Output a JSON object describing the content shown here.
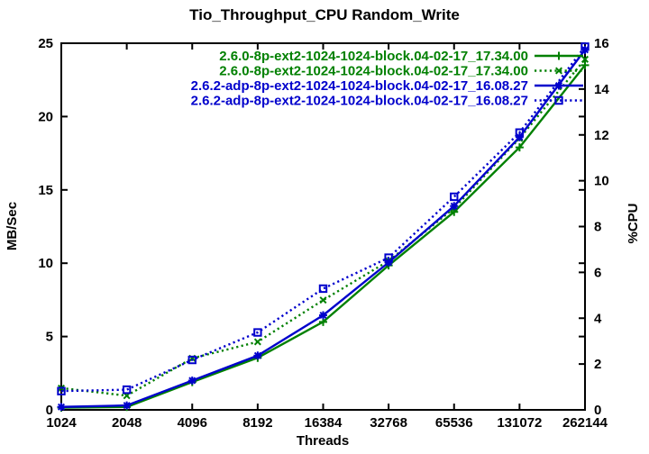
{
  "chart_data": {
    "type": "line",
    "title": "Tio_Throughput_CPU Random_Write",
    "xlabel": "Threads",
    "ylabel": "MB/Sec",
    "y2label": "%CPU",
    "x_scale": "log2",
    "grid": false,
    "legend_position": "top-right-inside",
    "x_ticks": [
      "1024",
      "2048",
      "4096",
      "8192",
      "16384",
      "32768",
      "65536",
      "131072",
      "262144"
    ],
    "x": [
      1024,
      2048,
      4096,
      8192,
      16384,
      32768,
      65536,
      131072,
      262144
    ],
    "ylim": [
      0,
      25
    ],
    "y_ticks": [
      0,
      5,
      10,
      15,
      20,
      25
    ],
    "y2lim": [
      0,
      16
    ],
    "y2_ticks": [
      0,
      2,
      4,
      6,
      8,
      10,
      12,
      14,
      16
    ],
    "colors": {
      "green": "#008000",
      "blue": "#0000cc",
      "border": "#000000",
      "background": "#ffffff"
    },
    "series": [
      {
        "name": "2.6.0-8p-ext2-1024-1024-block.04-02-17_17.34.00",
        "color": "#008000",
        "line": "solid",
        "marker": "plus",
        "axis": "y1",
        "values": [
          0.15,
          0.2,
          1.9,
          3.55,
          6.0,
          9.85,
          13.5,
          17.9,
          23.5
        ]
      },
      {
        "name": "2.6.0-8p-ext2-1024-1024-block.04-02-17_17.34.00",
        "color": "#008000",
        "line": "dotted",
        "marker": "cross",
        "axis": "y2",
        "values": [
          0.95,
          0.62,
          2.25,
          2.97,
          4.79,
          6.5,
          8.8,
          11.85,
          15.3
        ]
      },
      {
        "name": "2.6.2-adp-8p-ext2-1024-1024-block.04-02-17_16.08.27",
        "color": "#0000cc",
        "line": "solid",
        "marker": "asterisk",
        "axis": "y1",
        "values": [
          0.2,
          0.3,
          2.0,
          3.7,
          6.45,
          10.05,
          13.9,
          18.6,
          24.55
        ]
      },
      {
        "name": "2.6.2-adp-8p-ext2-1024-1024-block.04-02-17_16.08.27",
        "color": "#0000cc",
        "line": "dotted",
        "marker": "square",
        "axis": "y2",
        "values": [
          0.82,
          0.88,
          2.18,
          3.38,
          5.29,
          6.64,
          9.3,
          12.1,
          15.85
        ]
      }
    ]
  }
}
